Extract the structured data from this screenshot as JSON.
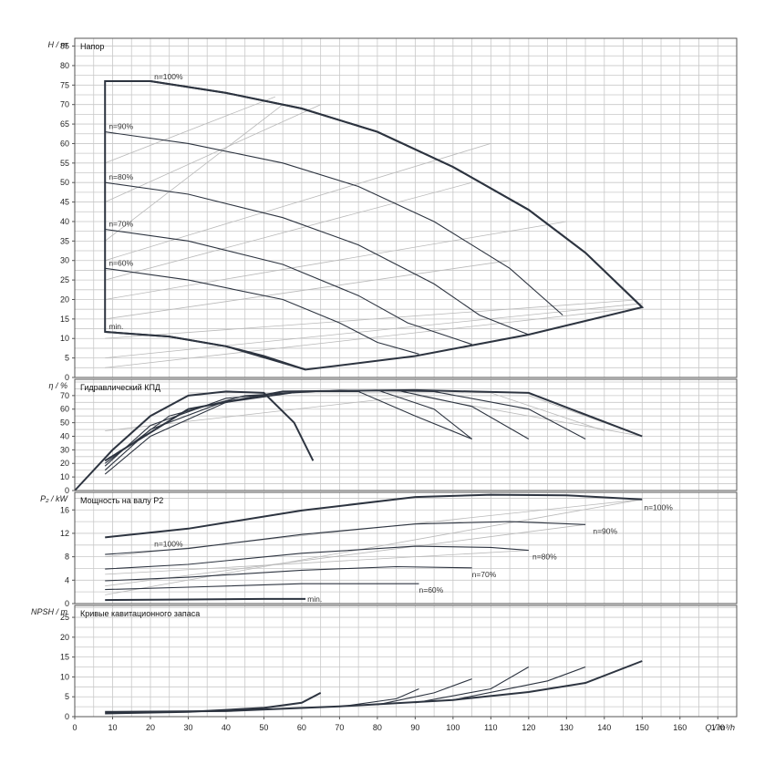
{
  "chart_data": [
    {
      "type": "line",
      "title": "Напор",
      "ylabel": "H / m",
      "xlabel": "Q / m³/h",
      "xlim": [
        0,
        175
      ],
      "ylim": [
        0,
        87
      ],
      "yticks": [
        0,
        5,
        10,
        15,
        20,
        25,
        30,
        35,
        40,
        45,
        50,
        55,
        60,
        65,
        70,
        75,
        80,
        85
      ],
      "grid": true,
      "envelope": [
        [
          8,
          76
        ],
        [
          20,
          76
        ],
        [
          40,
          73
        ],
        [
          60,
          69
        ],
        [
          80,
          63
        ],
        [
          100,
          54
        ],
        [
          120,
          43
        ],
        [
          135,
          32
        ],
        [
          150,
          18
        ],
        [
          120,
          11
        ],
        [
          90,
          5.5
        ],
        [
          61,
          2
        ],
        [
          40,
          8
        ],
        [
          25,
          10.5
        ],
        [
          8,
          11.7
        ]
      ],
      "series": [
        {
          "name": "n=100%",
          "points": [
            [
              8,
              76
            ],
            [
              20,
              76
            ],
            [
              40,
              73
            ],
            [
              60,
              69
            ],
            [
              80,
              63
            ],
            [
              100,
              54
            ],
            [
              120,
              43
            ],
            [
              135,
              32
            ],
            [
              150,
              18
            ]
          ]
        },
        {
          "name": "n=90%",
          "points": [
            [
              8,
              63
            ],
            [
              30,
              60
            ],
            [
              55,
              55
            ],
            [
              75,
              49
            ],
            [
              95,
              40
            ],
            [
              115,
              28
            ],
            [
              129,
              16
            ]
          ]
        },
        {
          "name": "n=80%",
          "points": [
            [
              8,
              50
            ],
            [
              30,
              47
            ],
            [
              55,
              41
            ],
            [
              75,
              34
            ],
            [
              95,
              24
            ],
            [
              107,
              16
            ],
            [
              120,
              11
            ]
          ]
        },
        {
          "name": "n=70%",
          "points": [
            [
              8,
              38
            ],
            [
              30,
              35
            ],
            [
              55,
              29
            ],
            [
              75,
              21
            ],
            [
              88,
              14
            ],
            [
              105,
              8.5
            ]
          ]
        },
        {
          "name": "n=60%",
          "points": [
            [
              8,
              28
            ],
            [
              30,
              25
            ],
            [
              55,
              20
            ],
            [
              70,
              14
            ],
            [
              80,
              9
            ],
            [
              91,
              6
            ]
          ]
        },
        {
          "name": "min.",
          "points": [
            [
              8,
              11.7
            ],
            [
              25,
              10.5
            ],
            [
              40,
              8
            ],
            [
              50,
              5.5
            ],
            [
              61,
              2
            ]
          ]
        }
      ],
      "iso_lines": [
        [
          [
            8,
            2.5
          ],
          [
            150,
            18
          ]
        ],
        [
          [
            8,
            5
          ],
          [
            150,
            19
          ]
        ],
        [
          [
            8,
            10
          ],
          [
            150,
            20
          ]
        ],
        [
          [
            8,
            15
          ],
          [
            115,
            30
          ]
        ],
        [
          [
            8,
            20
          ],
          [
            130,
            40
          ]
        ],
        [
          [
            8,
            25
          ],
          [
            105,
            50
          ]
        ],
        [
          [
            8,
            30
          ],
          [
            110,
            60
          ]
        ],
        [
          [
            8,
            35
          ],
          [
            55,
            70
          ]
        ],
        [
          [
            8,
            45
          ],
          [
            65,
            70
          ]
        ],
        [
          [
            8,
            55
          ],
          [
            53,
            72
          ]
        ]
      ]
    },
    {
      "type": "line",
      "title": "Гидравлический КПД",
      "ylabel": "η / %",
      "xlim": [
        0,
        175
      ],
      "ylim": [
        0,
        82
      ],
      "yticks": [
        0,
        10,
        20,
        30,
        40,
        50,
        60,
        70
      ],
      "grid": true,
      "series": [
        {
          "name": "n=100%",
          "points": [
            [
              0,
              0
            ],
            [
              10,
              30
            ],
            [
              20,
              55
            ],
            [
              30,
              70
            ],
            [
              40,
              73
            ],
            [
              50,
              72
            ],
            [
              58,
              50
            ],
            [
              63,
              22
            ]
          ]
        },
        {
          "name": "n=90%",
          "points": [
            [
              8,
              12
            ],
            [
              20,
              40
            ],
            [
              40,
              65
            ],
            [
              60,
              73
            ],
            [
              75,
              73
            ],
            [
              90,
              55
            ],
            [
              105,
              38
            ]
          ]
        },
        {
          "name": "n=80%",
          "points": [
            [
              8,
              15
            ],
            [
              20,
              45
            ],
            [
              40,
              66
            ],
            [
              60,
              73
            ],
            [
              80,
              74
            ],
            [
              95,
              60
            ],
            [
              105,
              38
            ]
          ]
        },
        {
          "name": "n=70%",
          "points": [
            [
              8,
              18
            ],
            [
              20,
              48
            ],
            [
              40,
              68
            ],
            [
              60,
              73
            ],
            [
              85,
              74
            ],
            [
              105,
              62
            ],
            [
              120,
              38
            ]
          ]
        },
        {
          "name": "n=60%",
          "points": [
            [
              8,
              20
            ],
            [
              25,
              55
            ],
            [
              45,
              70
            ],
            [
              70,
              74
            ],
            [
              95,
              73
            ],
            [
              120,
              60
            ],
            [
              135,
              38
            ]
          ]
        },
        {
          "name": "min.",
          "points": [
            [
              8,
              22
            ],
            [
              30,
              60
            ],
            [
              55,
              73
            ],
            [
              90,
              74
            ],
            [
              120,
              72
            ],
            [
              150,
              40
            ]
          ]
        }
      ],
      "iso_lines": [
        [
          [
            8,
            44
          ],
          [
            90,
            70
          ],
          [
            150,
            40
          ]
        ],
        [
          [
            30,
            72
          ],
          [
            110,
            72
          ],
          [
            140,
            44
          ]
        ],
        [
          [
            50,
            70
          ],
          [
            120,
            70
          ],
          [
            150,
            40
          ]
        ]
      ]
    },
    {
      "type": "line",
      "title": "Мощность на валу P2",
      "ylabel": "P₂ / kW",
      "xlim": [
        0,
        175
      ],
      "ylim": [
        0,
        19
      ],
      "yticks": [
        0,
        4,
        8,
        12,
        16
      ],
      "grid": true,
      "series": [
        {
          "name": "n=100%",
          "points": [
            [
              8,
              11.3
            ],
            [
              30,
              12.8
            ],
            [
              60,
              15.9
            ],
            [
              90,
              18.2
            ],
            [
              110,
              18.6
            ],
            [
              130,
              18.5
            ],
            [
              150,
              17.8
            ]
          ]
        },
        {
          "name": "n=90%",
          "points": [
            [
              8,
              8.4
            ],
            [
              30,
              9.4
            ],
            [
              60,
              11.8
            ],
            [
              90,
              13.6
            ],
            [
              115,
              14
            ],
            [
              135,
              13.5
            ]
          ]
        },
        {
          "name": "n=80%",
          "points": [
            [
              8,
              5.9
            ],
            [
              30,
              6.7
            ],
            [
              60,
              8.6
            ],
            [
              90,
              9.8
            ],
            [
              110,
              9.6
            ],
            [
              120,
              9.1
            ]
          ]
        },
        {
          "name": "n=70%",
          "points": [
            [
              8,
              3.9
            ],
            [
              30,
              4.5
            ],
            [
              60,
              5.7
            ],
            [
              85,
              6.3
            ],
            [
              105,
              6.1
            ]
          ]
        },
        {
          "name": "n=60%",
          "points": [
            [
              8,
              2.4
            ],
            [
              30,
              2.8
            ],
            [
              60,
              3.4
            ],
            [
              91,
              3.4
            ]
          ]
        },
        {
          "name": "min.",
          "points": [
            [
              8,
              0.6
            ],
            [
              30,
              0.7
            ],
            [
              50,
              0.8
            ],
            [
              61,
              0.8
            ]
          ]
        }
      ],
      "iso_lines": [
        [
          [
            8,
            1.5
          ],
          [
            150,
            17.8
          ]
        ],
        [
          [
            8,
            3
          ],
          [
            135,
            13.5
          ]
        ],
        [
          [
            8,
            5
          ],
          [
            120,
            9.1
          ]
        ],
        [
          [
            8,
            8
          ],
          [
            150,
            17.8
          ]
        ]
      ],
      "labels_shown": {
        "n100": "n=100%",
        "n90": "n=90%",
        "n80": "n=80%",
        "n70": "n=70%",
        "n60": "n=60%",
        "min": "min.",
        "n100_left": "n=100%"
      }
    },
    {
      "type": "line",
      "title": "Кривые кавитационного запаса",
      "ylabel": "NPSH / m",
      "xlabel": "Q / m³/h",
      "xlim": [
        0,
        175
      ],
      "xticks": [
        0,
        10,
        20,
        30,
        40,
        50,
        60,
        70,
        80,
        90,
        100,
        110,
        120,
        130,
        140,
        150,
        160,
        170
      ],
      "ylim": [
        0,
        28
      ],
      "yticks": [
        0,
        5,
        10,
        15,
        20,
        25
      ],
      "grid": true,
      "series": [
        {
          "name": "n=100%",
          "points": [
            [
              8,
              1.2
            ],
            [
              40,
              1.4
            ],
            [
              70,
              2.6
            ],
            [
              100,
              4.2
            ],
            [
              120,
              6.2
            ],
            [
              135,
              8.5
            ],
            [
              150,
              14
            ]
          ]
        },
        {
          "name": "min.",
          "points": [
            [
              8,
              0.8
            ],
            [
              30,
              1.2
            ],
            [
              50,
              2.2
            ],
            [
              60,
              3.5
            ],
            [
              65,
              6
            ]
          ]
        },
        {
          "name": "n=60%",
          "points": [
            [
              70,
              2.5
            ],
            [
              85,
              4.5
            ],
            [
              91,
              7
            ]
          ]
        },
        {
          "name": "n=70%",
          "points": [
            [
              80,
              3
            ],
            [
              95,
              6
            ],
            [
              105,
              9.5
            ]
          ]
        },
        {
          "name": "n=80%",
          "points": [
            [
              90,
              3.5
            ],
            [
              110,
              7
            ],
            [
              120,
              12.5
            ]
          ]
        },
        {
          "name": "n=90%",
          "points": [
            [
              100,
              4.2
            ],
            [
              125,
              9
            ],
            [
              135,
              12.5
            ]
          ]
        }
      ]
    }
  ]
}
